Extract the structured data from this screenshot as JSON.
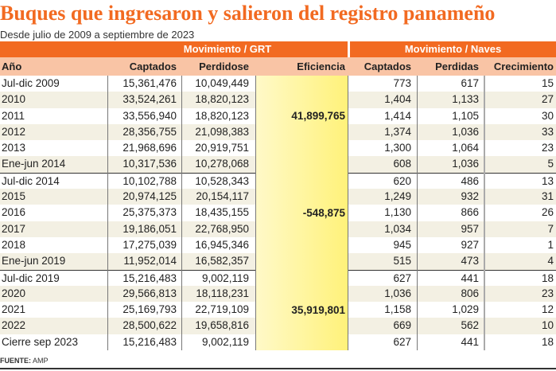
{
  "title": "Buques que ingresaron y salieron del registro panameño",
  "subtitle": "Desde julio de 2009 a septiembre de 2023",
  "groups": {
    "grt": "Movimiento / GRT",
    "naves": "Movimiento / Naves"
  },
  "headers": {
    "year": "Año",
    "grt_captados": "Captados",
    "grt_perdidos": "Perdidose",
    "eficiencia": "Eficiencia",
    "naves_captados": "Captados",
    "naves_perdidas": "Perdidas",
    "crecimiento": "Crecimiento"
  },
  "rows": [
    {
      "year": "Jul-dic 2009",
      "grt_c": "15,361,476",
      "grt_p": "10,049,449",
      "nav_c": "773",
      "nav_p": "617",
      "crec": "15"
    },
    {
      "year": "2010",
      "grt_c": "33,524,261",
      "grt_p": "18,820,123",
      "nav_c": "1,404",
      "nav_p": "1,133",
      "crec": "27"
    },
    {
      "year": "2011",
      "grt_c": "33,556,940",
      "grt_p": "18,820,123",
      "nav_c": "1,414",
      "nav_p": "1,105",
      "crec": "30"
    },
    {
      "year": "2012",
      "grt_c": "28,356,755",
      "grt_p": "21,098,383",
      "nav_c": "1,374",
      "nav_p": "1,036",
      "crec": "33"
    },
    {
      "year": "2013",
      "grt_c": "21,968,696",
      "grt_p": "20,919,751",
      "nav_c": "1,300",
      "nav_p": "1,064",
      "crec": "23"
    },
    {
      "year": "Ene-jun 2014",
      "grt_c": "10,317,536",
      "grt_p": "10,278,068",
      "nav_c": "608",
      "nav_p": "1,036",
      "crec": "5"
    },
    {
      "year": "Jul-dic 2014",
      "grt_c": "10,102,788",
      "grt_p": "10,528,343",
      "nav_c": "620",
      "nav_p": "486",
      "crec": "13"
    },
    {
      "year": "2015",
      "grt_c": "20,974,125",
      "grt_p": "20,154,117",
      "nav_c": "1,249",
      "nav_p": "932",
      "crec": "31"
    },
    {
      "year": "2016",
      "grt_c": "25,375,373",
      "grt_p": "18,435,155",
      "nav_c": "1,130",
      "nav_p": "866",
      "crec": "26"
    },
    {
      "year": "2017",
      "grt_c": "19,186,051",
      "grt_p": "22,768,950",
      "nav_c": "1,034",
      "nav_p": "957",
      "crec": "7"
    },
    {
      "year": "2018",
      "grt_c": "17,275,039",
      "grt_p": "16,945,346",
      "nav_c": "945",
      "nav_p": "927",
      "crec": "1"
    },
    {
      "year": "Ene-jun 2019",
      "grt_c": "11,952,014",
      "grt_p": "16,582,357",
      "nav_c": "515",
      "nav_p": "473",
      "crec": "4"
    },
    {
      "year": "Jul-dic 2019",
      "grt_c": "15,216,483",
      "grt_p": "9,002,119",
      "nav_c": "627",
      "nav_p": "441",
      "crec": "18"
    },
    {
      "year": "2020",
      "grt_c": "29,566,813",
      "grt_p": "18,118,231",
      "nav_c": "1,036",
      "nav_p": "806",
      "crec": "23"
    },
    {
      "year": "2021",
      "grt_c": "25,169,793",
      "grt_p": "22,719,109",
      "nav_c": "1,158",
      "nav_p": "1,029",
      "crec": "12"
    },
    {
      "year": "2022",
      "grt_c": "28,500,622",
      "grt_p": "19,658,816",
      "nav_c": "669",
      "nav_p": "562",
      "crec": "10"
    },
    {
      "year": "Cierre sep 2023",
      "grt_c": "15,216,483",
      "grt_p": "9,002,119",
      "nav_c": "627",
      "nav_p": "441",
      "crec": "18"
    }
  ],
  "eficiencia": [
    "41,899,765",
    "-548,875",
    "35,919,801"
  ],
  "source": {
    "label": "FUENTE:",
    "value": "AMP"
  },
  "colors": {
    "accent": "#f26a21",
    "header_bg": "#f9c4a5",
    "highlight": "#fff27a"
  }
}
